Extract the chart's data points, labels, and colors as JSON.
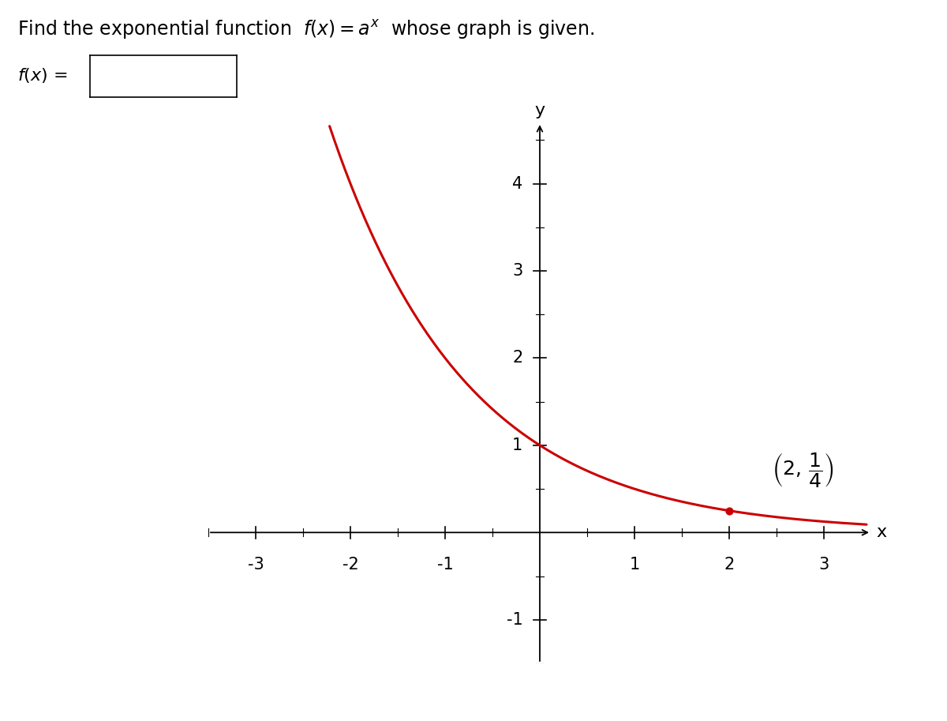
{
  "curve_color": "#cc0000",
  "curve_linewidth": 2.2,
  "point_x": 2,
  "point_y": 0.25,
  "point_color": "#cc0000",
  "point_size": 40,
  "xlim": [
    -3.5,
    3.5
  ],
  "ylim": [
    -1.5,
    4.7
  ],
  "xticks": [
    -3,
    -2,
    -1,
    1,
    2,
    3
  ],
  "yticks": [
    -1,
    1,
    2,
    3,
    4
  ],
  "xlabel": "x",
  "ylabel": "y",
  "background_color": "#ffffff",
  "base": 0.5,
  "x_curve_start": -2.22,
  "x_curve_end": 3.45,
  "title_fontsize": 17,
  "label_fontsize": 16,
  "tick_fontsize": 15,
  "annot_fontsize": 18
}
